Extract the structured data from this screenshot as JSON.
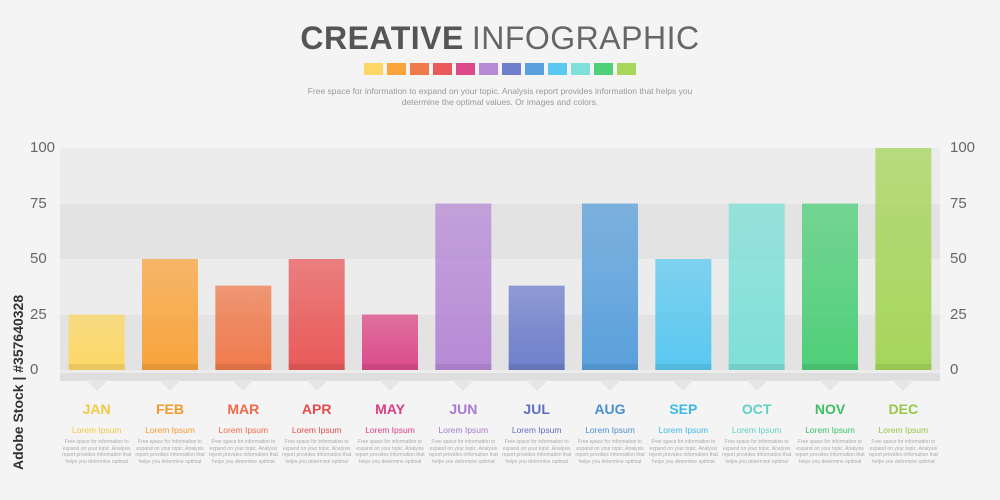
{
  "header": {
    "title_bold": "CREATIVE",
    "title_light": "INFOGRAPHIC",
    "subtitle_line1": "Free space for information to expand on your topic. Analysis report provides information that helps you",
    "subtitle_line2": "determine the optimal values. Or images and colors.",
    "swatch_colors": [
      "#fdd864",
      "#f9a43c",
      "#f07a4c",
      "#ea5a5a",
      "#dc4a8a",
      "#b78ad6",
      "#6f7fcb",
      "#5aa0dc",
      "#5ac8f0",
      "#7ee0d8",
      "#4fcf78",
      "#a6d65a"
    ]
  },
  "watermark": {
    "stock_id": "Adobe Stock | #357640328"
  },
  "chart_data": {
    "type": "bar",
    "categories": [
      "JAN",
      "FEB",
      "MAR",
      "APR",
      "MAY",
      "JUN",
      "JUL",
      "AUG",
      "SEP",
      "OCT",
      "NOV",
      "DEC"
    ],
    "values": [
      25,
      50,
      38,
      50,
      25,
      75,
      38,
      75,
      50,
      75,
      75,
      100
    ],
    "ylim": [
      0,
      100
    ],
    "yticks": [
      "0",
      "25",
      "50",
      "75",
      "100"
    ],
    "grid": true,
    "colors": [
      "#fdd864",
      "#f9a43c",
      "#f07a4c",
      "#ea5a5a",
      "#dc4a8a",
      "#b78ad6",
      "#6f7fcb",
      "#5aa0dc",
      "#5ac8f0",
      "#7ee0d8",
      "#4fcf78",
      "#a6d65a"
    ],
    "month_label_colors": [
      "#f5c842",
      "#f39a2e",
      "#ee6a48",
      "#e64c4c",
      "#d83e82",
      "#a87ad0",
      "#5f6fc0",
      "#4a8fd0",
      "#3cb8ea",
      "#5ed0c8",
      "#3cbf68",
      "#96c64a"
    ],
    "item_titles": [
      "Lorem Ipsum",
      "Lorem Ipsum",
      "Lorem Ipsum",
      "Lorem Ipsum",
      "Lorem Ipsum",
      "Lorem Ipsum",
      "Lorem Ipsum",
      "Lorem Ipsum",
      "Lorem Ipsum",
      "Lorem Ipsum",
      "Lorem Ipsum",
      "Lorem Ipsum"
    ],
    "item_desc": "Free space for information to expand on your topic. Analysis report provides information that helps you determine optimal"
  }
}
